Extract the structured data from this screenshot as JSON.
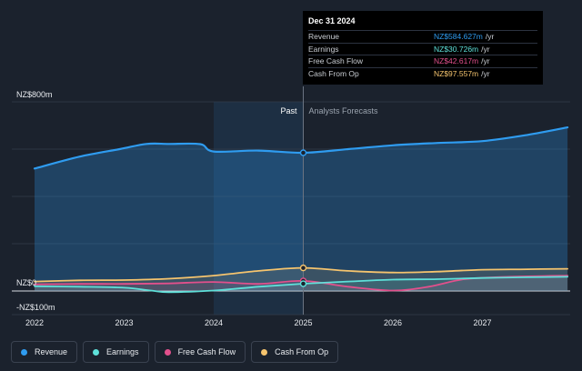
{
  "chart_data": {
    "type": "line",
    "y_labels": {
      "top": "NZ$800m",
      "zero": "NZ$0",
      "bottom": "-NZ$100m"
    },
    "ylim": [
      -100,
      800
    ],
    "xlim": [
      2022,
      2027.95
    ],
    "x_ticks": [
      "2022",
      "2023",
      "2024",
      "2025",
      "2026",
      "2027"
    ],
    "past_label": "Past",
    "forecast_label": "Analysts Forecasts",
    "divider_x": 2025.0,
    "highlight_start": 2024.0,
    "grid": true,
    "series": [
      {
        "name": "Revenue",
        "color": "#2f9cf0",
        "points": [
          [
            2022.0,
            518
          ],
          [
            2022.5,
            568
          ],
          [
            2022.95,
            600
          ],
          [
            2023.25,
            622
          ],
          [
            2023.5,
            622
          ],
          [
            2023.85,
            621
          ],
          [
            2024.0,
            590
          ],
          [
            2024.5,
            594
          ],
          [
            2025.0,
            584.6
          ],
          [
            2025.5,
            600
          ],
          [
            2026.0,
            616
          ],
          [
            2026.5,
            626
          ],
          [
            2027.0,
            634
          ],
          [
            2027.5,
            660
          ],
          [
            2027.95,
            692
          ]
        ]
      },
      {
        "name": "Earnings",
        "color": "#5ee0d9",
        "points": [
          [
            2022.0,
            20
          ],
          [
            2022.5,
            18
          ],
          [
            2023.0,
            14
          ],
          [
            2023.3,
            2
          ],
          [
            2023.5,
            -5
          ],
          [
            2024.0,
            2
          ],
          [
            2024.5,
            18
          ],
          [
            2025.0,
            30.7
          ],
          [
            2025.5,
            40
          ],
          [
            2026.0,
            48
          ],
          [
            2026.5,
            50
          ],
          [
            2027.0,
            55
          ],
          [
            2027.5,
            58
          ],
          [
            2027.95,
            60
          ]
        ]
      },
      {
        "name": "Free Cash Flow",
        "color": "#e2508c",
        "points": [
          [
            2022.0,
            28
          ],
          [
            2022.5,
            30
          ],
          [
            2023.0,
            30
          ],
          [
            2023.5,
            32
          ],
          [
            2024.0,
            38
          ],
          [
            2024.5,
            30
          ],
          [
            2025.0,
            42.6
          ],
          [
            2025.5,
            18
          ],
          [
            2026.0,
            2
          ],
          [
            2026.4,
            18
          ],
          [
            2026.8,
            50
          ],
          [
            2027.3,
            60
          ],
          [
            2027.95,
            65
          ]
        ]
      },
      {
        "name": "Cash From Op",
        "color": "#f5c46e",
        "points": [
          [
            2022.0,
            40
          ],
          [
            2022.5,
            45
          ],
          [
            2023.0,
            46
          ],
          [
            2023.5,
            52
          ],
          [
            2024.0,
            65
          ],
          [
            2024.5,
            85
          ],
          [
            2025.0,
            97.6
          ],
          [
            2025.5,
            85
          ],
          [
            2026.0,
            78
          ],
          [
            2026.5,
            82
          ],
          [
            2027.0,
            90
          ],
          [
            2027.5,
            92
          ],
          [
            2027.95,
            94
          ]
        ]
      }
    ],
    "highlight_points": [
      {
        "series": "Revenue",
        "x": 2025.0,
        "y": 584.6
      },
      {
        "series": "Cash From Op",
        "x": 2025.0,
        "y": 97.6
      },
      {
        "series": "Free Cash Flow",
        "x": 2025.0,
        "y": 42.6
      },
      {
        "series": "Earnings",
        "x": 2025.0,
        "y": 30.7
      }
    ]
  },
  "tooltip": {
    "date": "Dec 31 2024",
    "rows": [
      {
        "label": "Revenue",
        "value": "NZ$584.627m",
        "unit": "/yr",
        "color": "#2f9cf0"
      },
      {
        "label": "Earnings",
        "value": "NZ$30.726m",
        "unit": "/yr",
        "color": "#5ee0d9"
      },
      {
        "label": "Free Cash Flow",
        "value": "NZ$42.617m",
        "unit": "/yr",
        "color": "#e2508c"
      },
      {
        "label": "Cash From Op",
        "value": "NZ$97.557m",
        "unit": "/yr",
        "color": "#f5c46e"
      }
    ]
  },
  "legend": [
    {
      "label": "Revenue",
      "color": "#2f9cf0"
    },
    {
      "label": "Earnings",
      "color": "#5ee0d9"
    },
    {
      "label": "Free Cash Flow",
      "color": "#e2508c"
    },
    {
      "label": "Cash From Op",
      "color": "#f5c46e"
    }
  ]
}
